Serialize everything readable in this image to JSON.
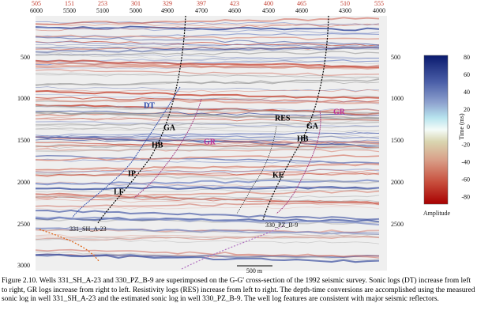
{
  "figure": {
    "top_axis_red": [
      "505",
      "151",
      "253",
      "301",
      "329",
      "397",
      "423",
      "400",
      "465",
      "510",
      "555"
    ],
    "top_axis_black": [
      "6000",
      "5500",
      "5100",
      "5000",
      "4900",
      "4700",
      "4600",
      "4500",
      "4600",
      "4300",
      "4000"
    ],
    "left_axis": [
      "500",
      "1000",
      "1500",
      "2000",
      "2500",
      "3000"
    ],
    "right_axis": [
      "500",
      "1000",
      "1500",
      "2000",
      "2500"
    ],
    "right_axis_title": "Time (ms)",
    "colorbar": {
      "ticks": [
        "80",
        "60",
        "40",
        "20",
        "0",
        "-20",
        "-40",
        "-60",
        "-80"
      ],
      "label": "Amplitude"
    },
    "wells": [
      "331_SH_A-23",
      "330_PZ_B-9"
    ],
    "log_labels": [
      "DT",
      "GA",
      "GR",
      "HB",
      "IP",
      "LF",
      "RES",
      "GA",
      "GR",
      "HB",
      "KE"
    ],
    "scale_bar": "500 m",
    "caption": "Figure 2.10. Wells 331_SH_A-23 and 330_PZ_B-9 are superimposed on the G-G' cross-section of the 1992 seismic survey.  Sonic logs (DT) increase from left to right, GR logs increase from right to left.  Resistivity logs (RES) increase from left to right.  The depth-time conversions are accomplished using the measured sonic log in well 331_SH_A-23 and the estimated sonic log in well 330_PZ_B-9.  The well log features are consistent with major seismic reflectors."
  }
}
